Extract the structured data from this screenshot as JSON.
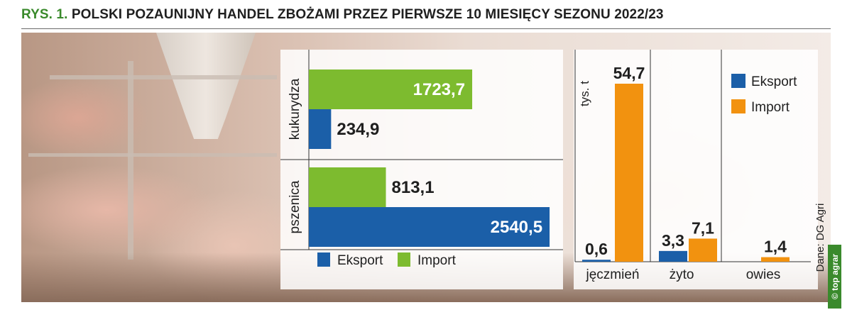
{
  "title": {
    "figure": "RYS. 1.",
    "text": "POLSKI POZAUNIJNY HANDEL ZBOŻAMI PRZEZ PIERWSZE 10 MIESIĘCY SEZONU 2022/23"
  },
  "colors": {
    "export": "#1b5fa8",
    "import": "#7dbb2f",
    "import_right": "#f2920f",
    "title_accent": "#3a8a2c"
  },
  "chart_data": [
    {
      "type": "bar",
      "orientation": "horizontal",
      "categories": [
        "kukurydza",
        "pszenica"
      ],
      "series": [
        {
          "name": "Eksport",
          "values": [
            234.9,
            2540.5
          ]
        },
        {
          "name": "Import",
          "values": [
            1723.7,
            813.1
          ]
        }
      ],
      "value_labels": {
        "Eksport": [
          "234,9",
          "2540,5"
        ],
        "Import": [
          "1723,7",
          "813,1"
        ]
      },
      "legend": [
        "Eksport",
        "Import"
      ],
      "legend_position": "bottom",
      "xlim": [
        0,
        2600
      ]
    },
    {
      "type": "bar",
      "orientation": "vertical",
      "categories": [
        "jęczmień",
        "żyto",
        "owies"
      ],
      "series": [
        {
          "name": "Eksport",
          "values": [
            0.6,
            3.3,
            null
          ]
        },
        {
          "name": "Import",
          "values": [
            54.7,
            7.1,
            1.4
          ]
        }
      ],
      "value_labels": {
        "Eksport": [
          "0,6",
          "3,3",
          ""
        ],
        "Import": [
          "54,7",
          "7,1",
          "1,4"
        ]
      },
      "ylabel": "tys. t",
      "ylim": [
        0,
        56
      ],
      "legend": [
        "Eksport",
        "Import"
      ],
      "legend_position": "top-right"
    }
  ],
  "source": "Dane: DG Agri",
  "brand": "© top agrar"
}
